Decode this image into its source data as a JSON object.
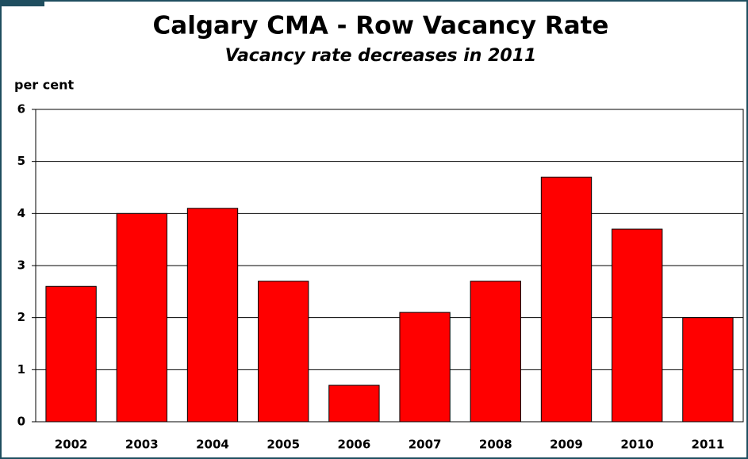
{
  "chart_data": {
    "type": "bar",
    "title": "Calgary CMA - Row Vacancy Rate",
    "subtitle": "Vacancy rate decreases in 2011",
    "y_label": "per cent",
    "categories": [
      "2002",
      "2003",
      "2004",
      "2005",
      "2006",
      "2007",
      "2008",
      "2009",
      "2010",
      "2011"
    ],
    "values": [
      2.6,
      4.0,
      4.1,
      2.7,
      0.7,
      2.1,
      2.7,
      4.7,
      3.7,
      2.0
    ],
    "color": "#ff0000",
    "ylim": [
      0,
      6
    ],
    "yticks": [
      0,
      1,
      2,
      3,
      4,
      5,
      6
    ],
    "grid": true
  }
}
